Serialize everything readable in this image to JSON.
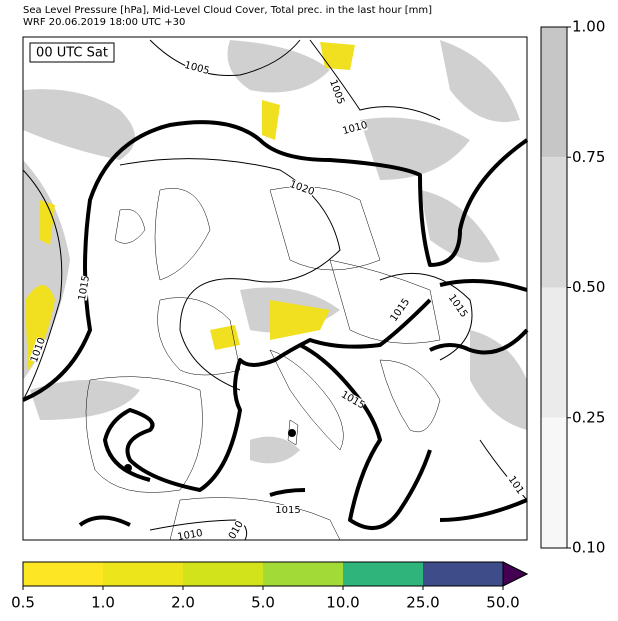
{
  "header": {
    "title": "Sea Level Pressure [hPa], Mid-Level Cloud Cover, Total prec. in the last hour [mm]",
    "subtitle": "WRF 20.06.2019 18:00 UTC +30"
  },
  "map": {
    "time_label": "00 UTC Sat",
    "contour_labels": [
      "1005",
      "1005",
      "1010",
      "1020",
      "1015",
      "1010",
      "1015",
      "1015",
      "1015",
      "1015",
      "1010",
      "010",
      "101"
    ]
  },
  "cloud_colorbar": {
    "labels": [
      "1.00",
      "0.75",
      "0.50",
      "0.25",
      "0.10"
    ],
    "colors": [
      "#c6c6c6",
      "#d9d9d9",
      "#ebebeb",
      "#f7f7f7"
    ]
  },
  "precip_colorbar": {
    "labels": [
      "0.5",
      "1.0",
      "2.0",
      "5.0",
      "10.0",
      "25.0",
      "50.0"
    ],
    "colors": [
      "#fde725",
      "#ece51b",
      "#d2e21b",
      "#a2da37",
      "#2fb47c",
      "#3e4c8a"
    ],
    "over_color": "#440154"
  }
}
